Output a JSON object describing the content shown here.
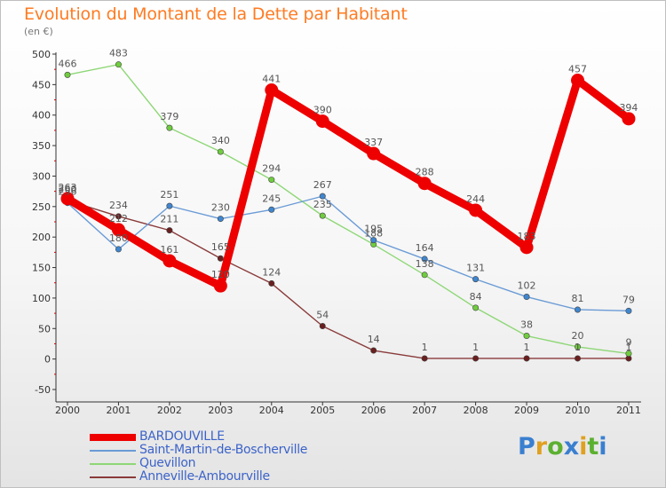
{
  "chart_data": {
    "type": "line",
    "title": "Evolution du Montant de la Dette par Habitant",
    "subtitle": "(en €)",
    "categories": [
      "2000",
      "2001",
      "2002",
      "2003",
      "2004",
      "2005",
      "2006",
      "2007",
      "2008",
      "2009",
      "2010",
      "2011"
    ],
    "ylim": [
      -50,
      500
    ],
    "yticks": [
      -50,
      0,
      50,
      100,
      150,
      200,
      250,
      300,
      350,
      400,
      450,
      500
    ],
    "grid": false,
    "legend_position": "bottom-left",
    "series": [
      {
        "name": "BARDOUVILLE",
        "color": "#ee0000",
        "point_color": "#ee0000",
        "values": [
          263,
          212,
          161,
          120,
          441,
          390,
          337,
          288,
          244,
          183,
          457,
          394
        ]
      },
      {
        "name": "Saint-Martin-de-Boscherville",
        "color": "#6a9bd6",
        "point_color": "#3f86d0",
        "values": [
          256,
          180,
          251,
          230,
          245,
          267,
          195,
          164,
          131,
          102,
          81,
          79
        ]
      },
      {
        "name": "Quevillon",
        "color": "#8ed776",
        "point_color": "#6fcd3d",
        "values": [
          466,
          483,
          379,
          340,
          294,
          235,
          188,
          138,
          84,
          38,
          20,
          9
        ]
      },
      {
        "name": "Anneville-Ambourville",
        "color": "#8a3a3a",
        "point_color": "#6a1f1f",
        "values": [
          260,
          234,
          211,
          165,
          124,
          54,
          14,
          1,
          1,
          1,
          1,
          1
        ]
      }
    ]
  },
  "logo": {
    "text": "Proxiti",
    "letter_colors": [
      "#3a7fd0",
      "#e0a020",
      "#5cb030",
      "#3a7fd0",
      "#e0a020",
      "#5cb030",
      "#3a7fd0"
    ]
  }
}
